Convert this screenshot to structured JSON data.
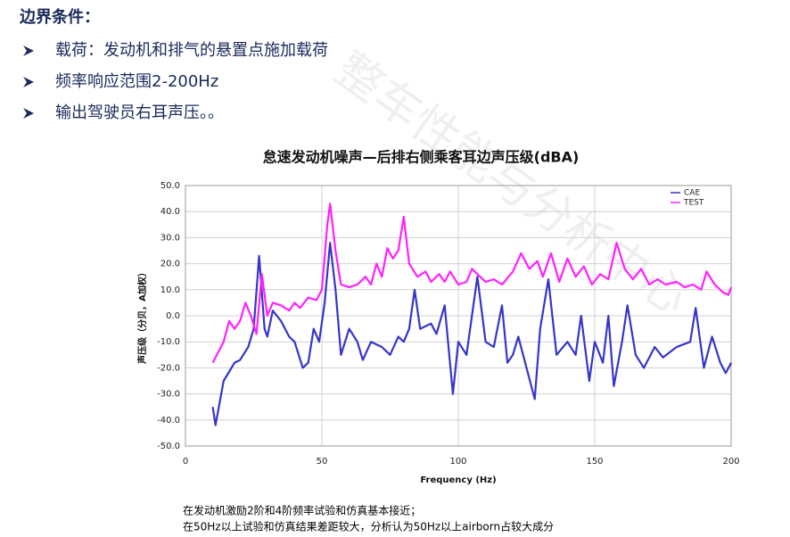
{
  "header": {
    "title": "边界条件："
  },
  "bullets": [
    "载荷：发动机和排气的悬置点施加载荷",
    "频率响应范围2-200Hz",
    "输出驾驶员右耳声压。。"
  ],
  "watermark": "整车性能与分析中心",
  "caption": [
    "在发动机激励2阶和4阶频率试验和仿真基本接近；",
    "在50Hz以上试验和仿真结果差距较大，分析认为50Hz以上airborn占较大成分"
  ],
  "chart_data": {
    "type": "line",
    "title": "怠速发动机噪声—后排右侧乘客耳边声压级(dBA)",
    "x_label": "Frequency (Hz)",
    "y_label": "声压级（分贝，A加权）",
    "xlim": [
      0,
      200
    ],
    "xticks": [
      0,
      50,
      100,
      150,
      200
    ],
    "ylim": [
      -50,
      50
    ],
    "yticks": [
      {
        "value": -50,
        "label": "-50.0"
      },
      {
        "value": -40,
        "label": "-40.0"
      },
      {
        "value": -30,
        "label": "-30.0"
      },
      {
        "value": -20,
        "label": "-20.0"
      },
      {
        "value": -10,
        "label": "-10.0"
      },
      {
        "value": 0,
        "label": "0.0"
      },
      {
        "value": 10,
        "label": "10.0"
      },
      {
        "value": 20,
        "label": "20.0"
      },
      {
        "value": 30,
        "label": "30.0"
      },
      {
        "value": 40,
        "label": "40.0"
      },
      {
        "value": 50,
        "label": "50.0"
      }
    ],
    "grid": true,
    "legend": "top-right",
    "series": [
      {
        "name": "CAE",
        "color": "#3535c8",
        "x": [
          10,
          11,
          14,
          18,
          20,
          23,
          25,
          27,
          29,
          30,
          32,
          35,
          38,
          40,
          43,
          45,
          47,
          49,
          51,
          53,
          55,
          57,
          60,
          63,
          65,
          68,
          72,
          75,
          78,
          80,
          82,
          84,
          86,
          90,
          92,
          95,
          98,
          100,
          103,
          107,
          110,
          113,
          116,
          118,
          120,
          122,
          125,
          128,
          130,
          133,
          136,
          140,
          143,
          145,
          148,
          150,
          153,
          155,
          157,
          160,
          162,
          165,
          168,
          172,
          175,
          180,
          185,
          187,
          190,
          193,
          196,
          198,
          200
        ],
        "values": [
          -35,
          -42,
          -25,
          -18,
          -17,
          -12,
          -5,
          23,
          -5,
          -8,
          2,
          -2,
          -8,
          -10,
          -20,
          -18,
          -5,
          -10,
          5,
          28,
          10,
          -15,
          -5,
          -10,
          -17,
          -10,
          -12,
          -15,
          -8,
          -10,
          -5,
          10,
          -5,
          -3,
          -7,
          4,
          -30,
          -10,
          -15,
          15,
          -10,
          -12,
          4,
          -18,
          -15,
          -8,
          -20,
          -32,
          -5,
          14,
          -15,
          -10,
          -15,
          0,
          -25,
          -10,
          -18,
          0,
          -27,
          -10,
          4,
          -15,
          -20,
          -12,
          -16,
          -12,
          -10,
          3,
          -20,
          -8,
          -18,
          -22,
          -18
        ]
      },
      {
        "name": "TEST",
        "color": "#ff20ff",
        "x": [
          10,
          12,
          14,
          16,
          18,
          20,
          22,
          24,
          26,
          28,
          30,
          32,
          35,
          38,
          40,
          42,
          45,
          48,
          50,
          52,
          53,
          55,
          57,
          60,
          63,
          66,
          68,
          70,
          72,
          74,
          76,
          78,
          80,
          82,
          85,
          88,
          90,
          93,
          95,
          97,
          100,
          103,
          105,
          108,
          110,
          113,
          116,
          120,
          123,
          126,
          129,
          131,
          134,
          137,
          140,
          143,
          146,
          149,
          152,
          155,
          158,
          161,
          164,
          167,
          170,
          173,
          176,
          180,
          183,
          186,
          189,
          191,
          194,
          197,
          199,
          200
        ],
        "values": [
          -18,
          -14,
          -10,
          -2,
          -5,
          -2,
          5,
          0,
          -7,
          16,
          0,
          5,
          4,
          2,
          5,
          3,
          7,
          6,
          10,
          35,
          43,
          25,
          12,
          11,
          12,
          15,
          12,
          20,
          15,
          26,
          22,
          25,
          38,
          20,
          15,
          17,
          13,
          16,
          13,
          17,
          12,
          13,
          18,
          15,
          13,
          14,
          12,
          17,
          24,
          18,
          21,
          15,
          24,
          13,
          22,
          15,
          19,
          12,
          16,
          14,
          28,
          18,
          14,
          18,
          12,
          14,
          12,
          13,
          11,
          12,
          10,
          17,
          12,
          9,
          8,
          11
        ]
      }
    ]
  }
}
